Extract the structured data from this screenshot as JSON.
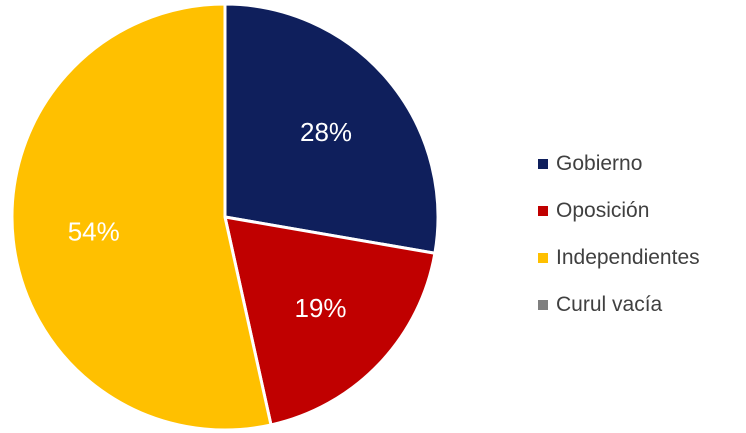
{
  "chart_data": {
    "type": "pie",
    "title": "",
    "start_angle_deg": 0,
    "direction": "clockwise",
    "legend_position": "right",
    "slices": [
      {
        "label": "Gobierno",
        "value": 28,
        "display": "28%",
        "color": "#0F1F5C",
        "label_color": "#FFFFFF"
      },
      {
        "label": "Oposición",
        "value": 19,
        "display": "19%",
        "color": "#C00000",
        "label_color": "#FFFFFF"
      },
      {
        "label": "Independientes",
        "value": 54,
        "display": "54%",
        "color": "#FFC000",
        "label_color": "#FFFFFF"
      },
      {
        "label": "Curul vacía",
        "value": 0,
        "display": "",
        "color": "#7F7F7F",
        "label_color": "#FFFFFF"
      }
    ]
  },
  "legend": {
    "items": [
      {
        "label": "Gobierno",
        "color": "#0F1F5C"
      },
      {
        "label": "Oposición",
        "color": "#C00000"
      },
      {
        "label": "Independientes",
        "color": "#FFC000"
      },
      {
        "label": "Curul vacía",
        "color": "#7F7F7F"
      }
    ]
  }
}
